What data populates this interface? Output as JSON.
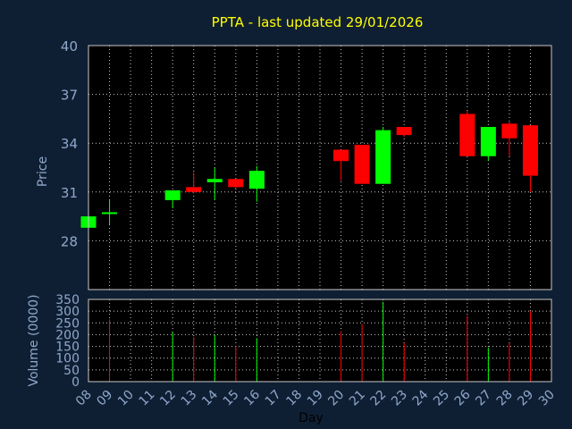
{
  "chart_data": {
    "type": "candlestick",
    "title": "PPTA - last updated 29/01/2026",
    "xlabel": "Day",
    "x_ticks": [
      "08",
      "09",
      "10",
      "11",
      "12",
      "13",
      "14",
      "15",
      "16",
      "17",
      "18",
      "19",
      "20",
      "21",
      "22",
      "23",
      "24",
      "25",
      "26",
      "27",
      "28",
      "29",
      "30"
    ],
    "price": {
      "ylabel": "Price",
      "ylim": [
        25,
        40
      ],
      "yticks": [
        28,
        31,
        34,
        37,
        40
      ],
      "candles": [
        {
          "day": 8,
          "open": 28.8,
          "high": 29.5,
          "low": 28.8,
          "close": 29.5
        },
        {
          "day": 9,
          "open": 29.7,
          "high": 30.5,
          "low": 29.0,
          "close": 29.7
        },
        {
          "day": 12,
          "open": 30.5,
          "high": 31.1,
          "low": 30.0,
          "close": 31.1
        },
        {
          "day": 13,
          "open": 31.3,
          "high": 32.2,
          "low": 30.9,
          "close": 31.0
        },
        {
          "day": 14,
          "open": 31.6,
          "high": 32.5,
          "low": 30.5,
          "close": 31.8
        },
        {
          "day": 15,
          "open": 31.8,
          "high": 31.8,
          "low": 31.2,
          "close": 31.3
        },
        {
          "day": 16,
          "open": 31.2,
          "high": 32.6,
          "low": 30.4,
          "close": 32.3
        },
        {
          "day": 20,
          "open": 33.6,
          "high": 33.6,
          "low": 31.7,
          "close": 32.9
        },
        {
          "day": 21,
          "open": 33.9,
          "high": 33.9,
          "low": 31.5,
          "close": 31.5
        },
        {
          "day": 22,
          "open": 31.5,
          "high": 35.0,
          "low": 31.5,
          "close": 34.8
        },
        {
          "day": 23,
          "open": 35.0,
          "high": 35.0,
          "low": 34.4,
          "close": 34.5
        },
        {
          "day": 26,
          "open": 35.8,
          "high": 36.0,
          "low": 33.2,
          "close": 33.2
        },
        {
          "day": 27,
          "open": 33.2,
          "high": 35.0,
          "low": 32.9,
          "close": 35.0
        },
        {
          "day": 28,
          "open": 35.2,
          "high": 35.3,
          "low": 33.2,
          "close": 34.3
        },
        {
          "day": 29,
          "open": 35.1,
          "high": 35.1,
          "low": 31.0,
          "close": 32.0
        }
      ]
    },
    "volume": {
      "ylabel": "Volume (0000)",
      "ylim": [
        0,
        350
      ],
      "yticks": [
        0,
        50,
        100,
        150,
        200,
        250,
        300,
        350
      ],
      "bars": [
        {
          "day": 9,
          "value": 265,
          "direction": "down"
        },
        {
          "day": 12,
          "value": 210,
          "direction": "up"
        },
        {
          "day": 13,
          "value": 190,
          "direction": "down"
        },
        {
          "day": 14,
          "value": 200,
          "direction": "up"
        },
        {
          "day": 15,
          "value": 150,
          "direction": "down"
        },
        {
          "day": 16,
          "value": 185,
          "direction": "up"
        },
        {
          "day": 20,
          "value": 215,
          "direction": "down"
        },
        {
          "day": 21,
          "value": 245,
          "direction": "down"
        },
        {
          "day": 22,
          "value": 340,
          "direction": "up"
        },
        {
          "day": 23,
          "value": 165,
          "direction": "down"
        },
        {
          "day": 26,
          "value": 280,
          "direction": "down"
        },
        {
          "day": 27,
          "value": 145,
          "direction": "up"
        },
        {
          "day": 28,
          "value": 165,
          "direction": "down"
        },
        {
          "day": 29,
          "value": 300,
          "direction": "down"
        }
      ]
    },
    "grid": true,
    "colors": {
      "background": "#0f1f33",
      "plot_background": "#000000",
      "up": "#00ff00",
      "down": "#ff0000",
      "grid": "#c8c8c8",
      "title": "#ffff00",
      "text": "#8fa8cc"
    }
  }
}
